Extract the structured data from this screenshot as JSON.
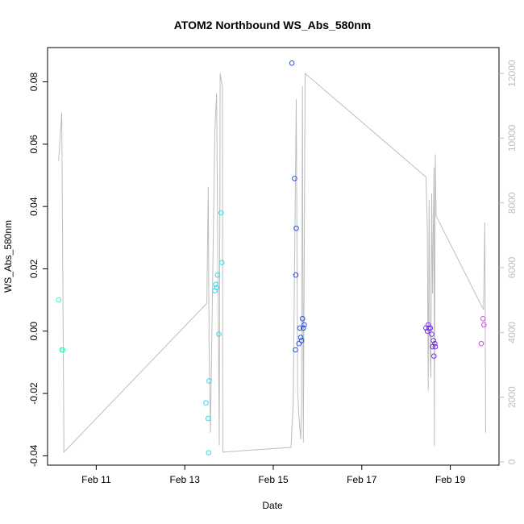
{
  "chart_data": {
    "type": "scatter",
    "title": "ATOM2 Northbound WS_Abs_580nm",
    "xlabel": "Date",
    "ylabel": "WS_Abs_580nm",
    "x_ticks": [
      "Feb 11",
      "Feb 13",
      "Feb 15",
      "Feb 17",
      "Feb 19"
    ],
    "x_tick_days": [
      11,
      13,
      15,
      17,
      19
    ],
    "xlim": [
      9.9,
      20.1
    ],
    "ylim": [
      -0.043,
      0.091
    ],
    "y_ticks": [
      "-0.04",
      "-0.02",
      "0.00",
      "0.02",
      "0.04",
      "0.06",
      "0.08"
    ],
    "y_tick_values": [
      -0.04,
      -0.02,
      0.0,
      0.02,
      0.04,
      0.06,
      0.08
    ],
    "y2lim": [
      -100,
      12800
    ],
    "y2_ticks": [
      "0",
      "2000",
      "4000",
      "6000",
      "8000",
      "10000",
      "12000"
    ],
    "y2_tick_values": [
      0,
      2000,
      4000,
      6000,
      8000,
      10000,
      12000
    ],
    "grid": false,
    "legend": "none",
    "line_color": "#bebebe",
    "axis_color": "#000000",
    "right_axis_color": "#bebebe",
    "points": [
      {
        "x": 10.15,
        "y": 0.01,
        "color": "#33ffb0"
      },
      {
        "x": 10.22,
        "y": -0.006,
        "color": "#33ffb0"
      },
      {
        "x": 10.25,
        "y": -0.006,
        "color": "#33ffb0"
      },
      {
        "x": 13.48,
        "y": -0.023,
        "color": "#33d6f0"
      },
      {
        "x": 13.53,
        "y": -0.028,
        "color": "#33d6f0"
      },
      {
        "x": 13.55,
        "y": -0.016,
        "color": "#33d6f0"
      },
      {
        "x": 13.54,
        "y": -0.039,
        "color": "#33d6f0"
      },
      {
        "x": 13.68,
        "y": 0.013,
        "color": "#33d6f0"
      },
      {
        "x": 13.7,
        "y": 0.015,
        "color": "#33d6f0"
      },
      {
        "x": 13.72,
        "y": 0.014,
        "color": "#33d6f0"
      },
      {
        "x": 13.74,
        "y": 0.018,
        "color": "#33d6f0"
      },
      {
        "x": 13.77,
        "y": -0.001,
        "color": "#33d6f0"
      },
      {
        "x": 13.82,
        "y": 0.038,
        "color": "#33d6f0"
      },
      {
        "x": 13.84,
        "y": 0.022,
        "color": "#33d6f0"
      },
      {
        "x": 15.42,
        "y": 0.086,
        "color": "#2a4fe0"
      },
      {
        "x": 15.48,
        "y": 0.049,
        "color": "#2a4fe0"
      },
      {
        "x": 15.52,
        "y": 0.033,
        "color": "#2a4fe0"
      },
      {
        "x": 15.51,
        "y": 0.018,
        "color": "#2a4fe0"
      },
      {
        "x": 15.5,
        "y": -0.006,
        "color": "#2a4fe0"
      },
      {
        "x": 15.58,
        "y": -0.004,
        "color": "#2a4fe0"
      },
      {
        "x": 15.6,
        "y": 0.001,
        "color": "#2a4fe0"
      },
      {
        "x": 15.62,
        "y": -0.002,
        "color": "#2a4fe0"
      },
      {
        "x": 15.64,
        "y": -0.003,
        "color": "#2a4fe0"
      },
      {
        "x": 15.66,
        "y": 0.004,
        "color": "#2a4fe0"
      },
      {
        "x": 15.68,
        "y": 0.001,
        "color": "#2a4fe0"
      },
      {
        "x": 15.7,
        "y": 0.002,
        "color": "#2a4fe0"
      },
      {
        "x": 18.45,
        "y": 0.001,
        "color": "#7a2fe8"
      },
      {
        "x": 18.48,
        "y": 0.0,
        "color": "#7a2fe8"
      },
      {
        "x": 18.5,
        "y": 0.002,
        "color": "#7a2fe8"
      },
      {
        "x": 18.52,
        "y": 0.001,
        "color": "#7a2fe8"
      },
      {
        "x": 18.55,
        "y": 0.001,
        "color": "#7a2fe8"
      },
      {
        "x": 18.58,
        "y": -0.001,
        "color": "#7a2fe8"
      },
      {
        "x": 18.6,
        "y": -0.005,
        "color": "#7a2fe8"
      },
      {
        "x": 18.62,
        "y": -0.003,
        "color": "#7a2fe8"
      },
      {
        "x": 18.63,
        "y": -0.008,
        "color": "#7a2fe8"
      },
      {
        "x": 18.65,
        "y": -0.004,
        "color": "#7a2fe8"
      },
      {
        "x": 18.66,
        "y": -0.005,
        "color": "#7a2fe8"
      },
      {
        "x": 19.7,
        "y": -0.004,
        "color": "#d24ae6"
      },
      {
        "x": 19.74,
        "y": 0.004,
        "color": "#d24ae6"
      },
      {
        "x": 19.76,
        "y": 0.002,
        "color": "#d24ae6"
      }
    ],
    "line": [
      [
        10.15,
        9300
      ],
      [
        10.22,
        10800
      ],
      [
        10.27,
        300
      ],
      [
        13.5,
        4900
      ],
      [
        13.53,
        8500
      ],
      [
        13.55,
        3600
      ],
      [
        13.58,
        900
      ],
      [
        13.68,
        10200
      ],
      [
        13.72,
        11400
      ],
      [
        13.78,
        500
      ],
      [
        13.8,
        12000
      ],
      [
        13.85,
        11600
      ],
      [
        13.86,
        300
      ],
      [
        15.4,
        450
      ],
      [
        15.45,
        1800
      ],
      [
        15.52,
        11200
      ],
      [
        15.55,
        2200
      ],
      [
        15.58,
        1400
      ],
      [
        15.62,
        700
      ],
      [
        15.64,
        1800
      ],
      [
        15.66,
        11600
      ],
      [
        15.68,
        600
      ],
      [
        15.72,
        12000
      ],
      [
        18.45,
        8800
      ],
      [
        18.48,
        7200
      ],
      [
        18.5,
        2200
      ],
      [
        18.52,
        8100
      ],
      [
        18.54,
        3500
      ],
      [
        18.56,
        2600
      ],
      [
        18.58,
        8300
      ],
      [
        18.6,
        5200
      ],
      [
        18.63,
        9100
      ],
      [
        18.64,
        500
      ],
      [
        18.66,
        9500
      ],
      [
        18.68,
        7600
      ],
      [
        19.75,
        4700
      ],
      [
        19.78,
        7400
      ],
      [
        19.8,
        900
      ]
    ]
  }
}
